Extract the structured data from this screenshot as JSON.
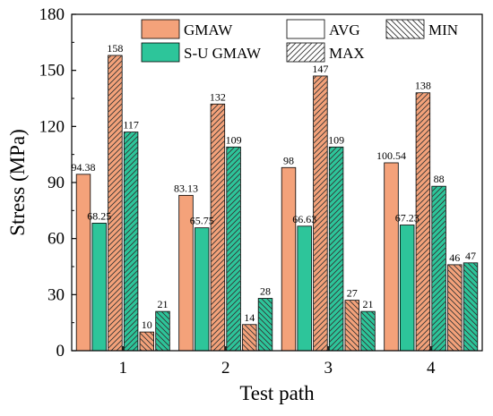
{
  "chart_data": {
    "type": "bar",
    "title": "",
    "xlabel": "Test path",
    "ylabel": "Stress (MPa)",
    "categories": [
      "1",
      "2",
      "3",
      "4"
    ],
    "ylim": [
      0,
      180
    ],
    "yticks": [
      0,
      30,
      60,
      90,
      120,
      150,
      180
    ],
    "grid": false,
    "legend_position": "top-right",
    "series": [
      {
        "name": "GMAW",
        "stat": "AVG",
        "color": "#F4A27A",
        "hatch": "none",
        "values": [
          94.38,
          83.13,
          98,
          100.54
        ],
        "labels": [
          "94.38",
          "83.13",
          "98",
          "100.54"
        ]
      },
      {
        "name": "S-U GMAW",
        "stat": "AVG",
        "color": "#2DC59A",
        "hatch": "none",
        "values": [
          68.25,
          65.75,
          66.63,
          67.23
        ],
        "labels": [
          "68.25",
          "65.75",
          "66.63",
          "67.23"
        ]
      },
      {
        "name": "GMAW",
        "stat": "MAX",
        "color": "#F4A27A",
        "hatch": "forward",
        "values": [
          158,
          132,
          147,
          138
        ],
        "labels": [
          "158",
          "132",
          "147",
          "138"
        ]
      },
      {
        "name": "S-U GMAW",
        "stat": "MAX",
        "color": "#2DC59A",
        "hatch": "forward",
        "values": [
          117,
          109,
          109,
          88
        ],
        "labels": [
          "117",
          "109",
          "109",
          "88"
        ]
      },
      {
        "name": "GMAW",
        "stat": "MIN",
        "color": "#F4A27A",
        "hatch": "back",
        "values": [
          10,
          14,
          27,
          46
        ],
        "labels": [
          "10",
          "14",
          "27",
          "46"
        ]
      },
      {
        "name": "S-U GMAW",
        "stat": "MIN",
        "color": "#2DC59A",
        "hatch": "back",
        "values": [
          21,
          28,
          21,
          47
        ],
        "labels": [
          "21",
          "28",
          "21",
          "47"
        ]
      }
    ],
    "legend": [
      {
        "label": "GMAW",
        "color": "#F4A27A",
        "hatch": "none"
      },
      {
        "label": "S-U GMAW",
        "color": "#2DC59A",
        "hatch": "none"
      },
      {
        "label": "AVG",
        "color": "#ffffff",
        "hatch": "none"
      },
      {
        "label": "MAX",
        "color": "#ffffff",
        "hatch": "forward"
      },
      {
        "label": "MIN",
        "color": "#ffffff",
        "hatch": "back"
      }
    ]
  }
}
